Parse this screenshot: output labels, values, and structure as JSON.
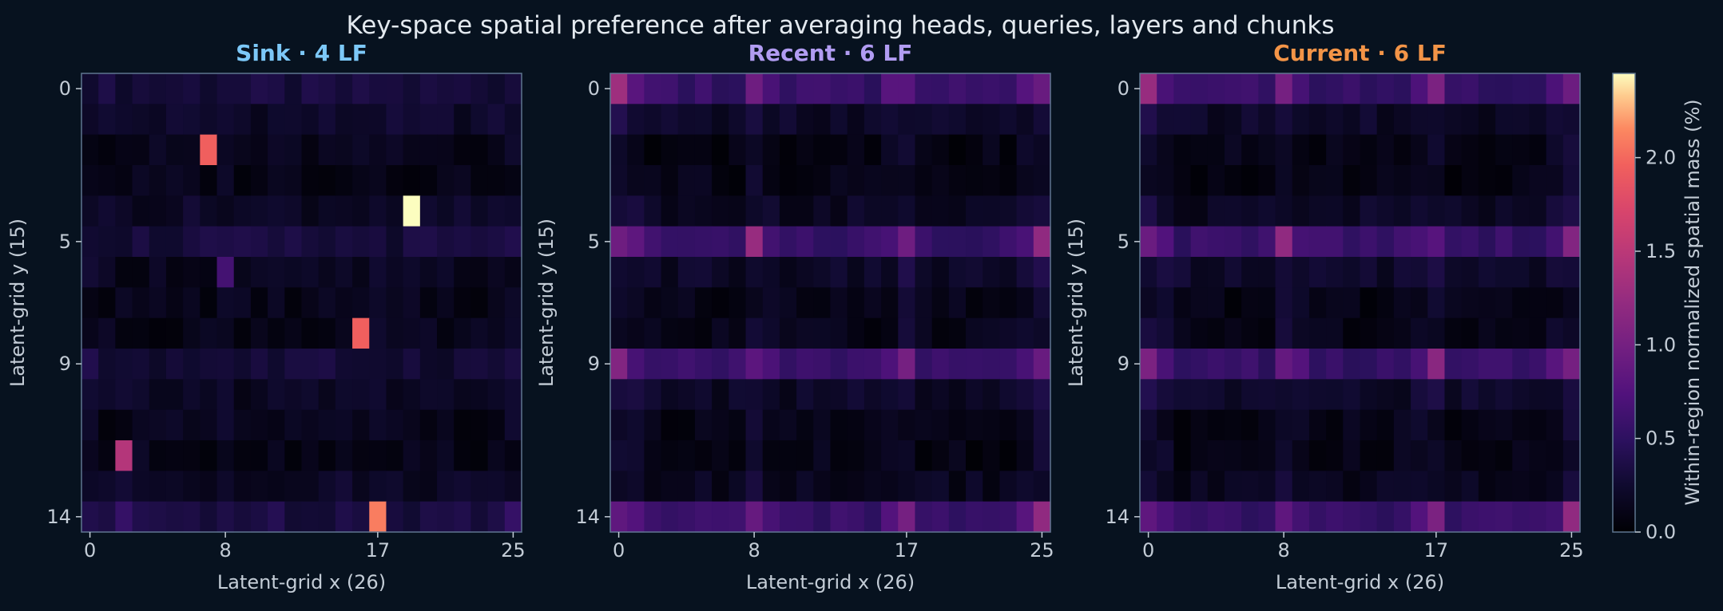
{
  "figure": {
    "title": "Key-space spatial preference after averaging heads, queries, layers and chunks",
    "background": "#07121f",
    "text_color": "#e3e9ef",
    "tick_color": "#c3ccd6",
    "frame_color": "#5f7690"
  },
  "colorbar": {
    "label": "Within-region normalized spatial mass (%)",
    "ticks": [
      "0.0",
      "0.5",
      "1.0",
      "1.5",
      "2.0"
    ],
    "tick_values": [
      0.0,
      0.5,
      1.0,
      1.5,
      2.0
    ],
    "range": [
      0,
      2.45
    ],
    "colormap": "magma"
  },
  "chart_data": [
    {
      "type": "heatmap",
      "title": "Sink · 4 LF",
      "title_color": "#7cc8f8",
      "xlabel": "Latent-grid x (26)",
      "ylabel": "Latent-grid y (15)",
      "xticks": [
        "0",
        "8",
        "17",
        "25"
      ],
      "xtick_values": [
        0,
        8,
        17,
        25
      ],
      "yticks": [
        "0",
        "5",
        "9",
        "14"
      ],
      "ytick_values": [
        0,
        5,
        9,
        14
      ],
      "cols": 26,
      "rows": 15,
      "base": 0.15,
      "row_levels": [
        0.3,
        0.22,
        0.13,
        0.12,
        0.2,
        0.3,
        0.15,
        0.12,
        0.12,
        0.28,
        0.18,
        0.13,
        0.12,
        0.2,
        0.35
      ],
      "col_boost": {
        "0": 0.12,
        "8": 0.1,
        "17": 0.1,
        "25": 0.12
      },
      "hotspots": [
        {
          "x": 7,
          "y": 2,
          "v": 1.95
        },
        {
          "x": 19,
          "y": 4,
          "v": 2.45
        },
        {
          "x": 8,
          "y": 6,
          "v": 0.65
        },
        {
          "x": 16,
          "y": 8,
          "v": 1.95
        },
        {
          "x": 2,
          "y": 12,
          "v": 1.45
        },
        {
          "x": 17,
          "y": 14,
          "v": 2.1
        },
        {
          "x": 2,
          "y": 14,
          "v": 0.55
        },
        {
          "x": 25,
          "y": 14,
          "v": 0.55
        }
      ]
    },
    {
      "type": "heatmap",
      "title": "Recent · 6 LF",
      "title_color": "#b19cf2",
      "xlabel": "Latent-grid x (26)",
      "ylabel": "Latent-grid y (15)",
      "xticks": [
        "0",
        "8",
        "17",
        "25"
      ],
      "xtick_values": [
        0,
        8,
        17,
        25
      ],
      "yticks": [
        "0",
        "5",
        "9",
        "14"
      ],
      "ytick_values": [
        0,
        5,
        9,
        14
      ],
      "cols": 26,
      "rows": 15,
      "base": 0.1,
      "row_levels": [
        0.55,
        0.2,
        0.1,
        0.1,
        0.18,
        0.55,
        0.2,
        0.1,
        0.12,
        0.55,
        0.2,
        0.1,
        0.1,
        0.15,
        0.55
      ],
      "col_boost": {
        "0": 0.35,
        "1": 0.2,
        "8": 0.3,
        "9": 0.15,
        "17": 0.3,
        "16": 0.15,
        "25": 0.35,
        "24": 0.15
      },
      "hotspots": [
        {
          "x": 0,
          "y": 0,
          "v": 1.3
        },
        {
          "x": 8,
          "y": 5,
          "v": 1.25
        },
        {
          "x": 25,
          "y": 5,
          "v": 1.2
        },
        {
          "x": 0,
          "y": 9,
          "v": 1.1
        },
        {
          "x": 17,
          "y": 9,
          "v": 1.0
        },
        {
          "x": 25,
          "y": 14,
          "v": 1.2
        },
        {
          "x": 17,
          "y": 14,
          "v": 1.0
        },
        {
          "x": 8,
          "y": 0,
          "v": 0.95
        },
        {
          "x": 17,
          "y": 5,
          "v": 0.95
        },
        {
          "x": 0,
          "y": 5,
          "v": 0.95
        }
      ]
    },
    {
      "type": "heatmap",
      "title": "Current · 6 LF",
      "title_color": "#f39447",
      "xlabel": "Latent-grid x (26)",
      "ylabel": "Latent-grid y (15)",
      "xticks": [
        "0",
        "8",
        "17",
        "25"
      ],
      "xtick_values": [
        0,
        8,
        17,
        25
      ],
      "yticks": [
        "0",
        "5",
        "9",
        "14"
      ],
      "ytick_values": [
        0,
        5,
        9,
        14
      ],
      "cols": 26,
      "rows": 15,
      "base": 0.1,
      "row_levels": [
        0.55,
        0.2,
        0.1,
        0.1,
        0.18,
        0.55,
        0.22,
        0.1,
        0.12,
        0.55,
        0.22,
        0.1,
        0.1,
        0.15,
        0.55
      ],
      "col_boost": {
        "0": 0.35,
        "1": 0.2,
        "8": 0.3,
        "9": 0.15,
        "17": 0.3,
        "16": 0.15,
        "25": 0.35,
        "24": 0.15
      },
      "hotspots": [
        {
          "x": 0,
          "y": 0,
          "v": 1.25
        },
        {
          "x": 8,
          "y": 5,
          "v": 1.2
        },
        {
          "x": 25,
          "y": 5,
          "v": 1.1
        },
        {
          "x": 17,
          "y": 9,
          "v": 1.15
        },
        {
          "x": 0,
          "y": 9,
          "v": 1.05
        },
        {
          "x": 25,
          "y": 14,
          "v": 1.2
        },
        {
          "x": 17,
          "y": 14,
          "v": 1.05
        },
        {
          "x": 8,
          "y": 0,
          "v": 1.0
        },
        {
          "x": 17,
          "y": 0,
          "v": 1.05
        },
        {
          "x": 25,
          "y": 9,
          "v": 1.0
        }
      ]
    }
  ]
}
